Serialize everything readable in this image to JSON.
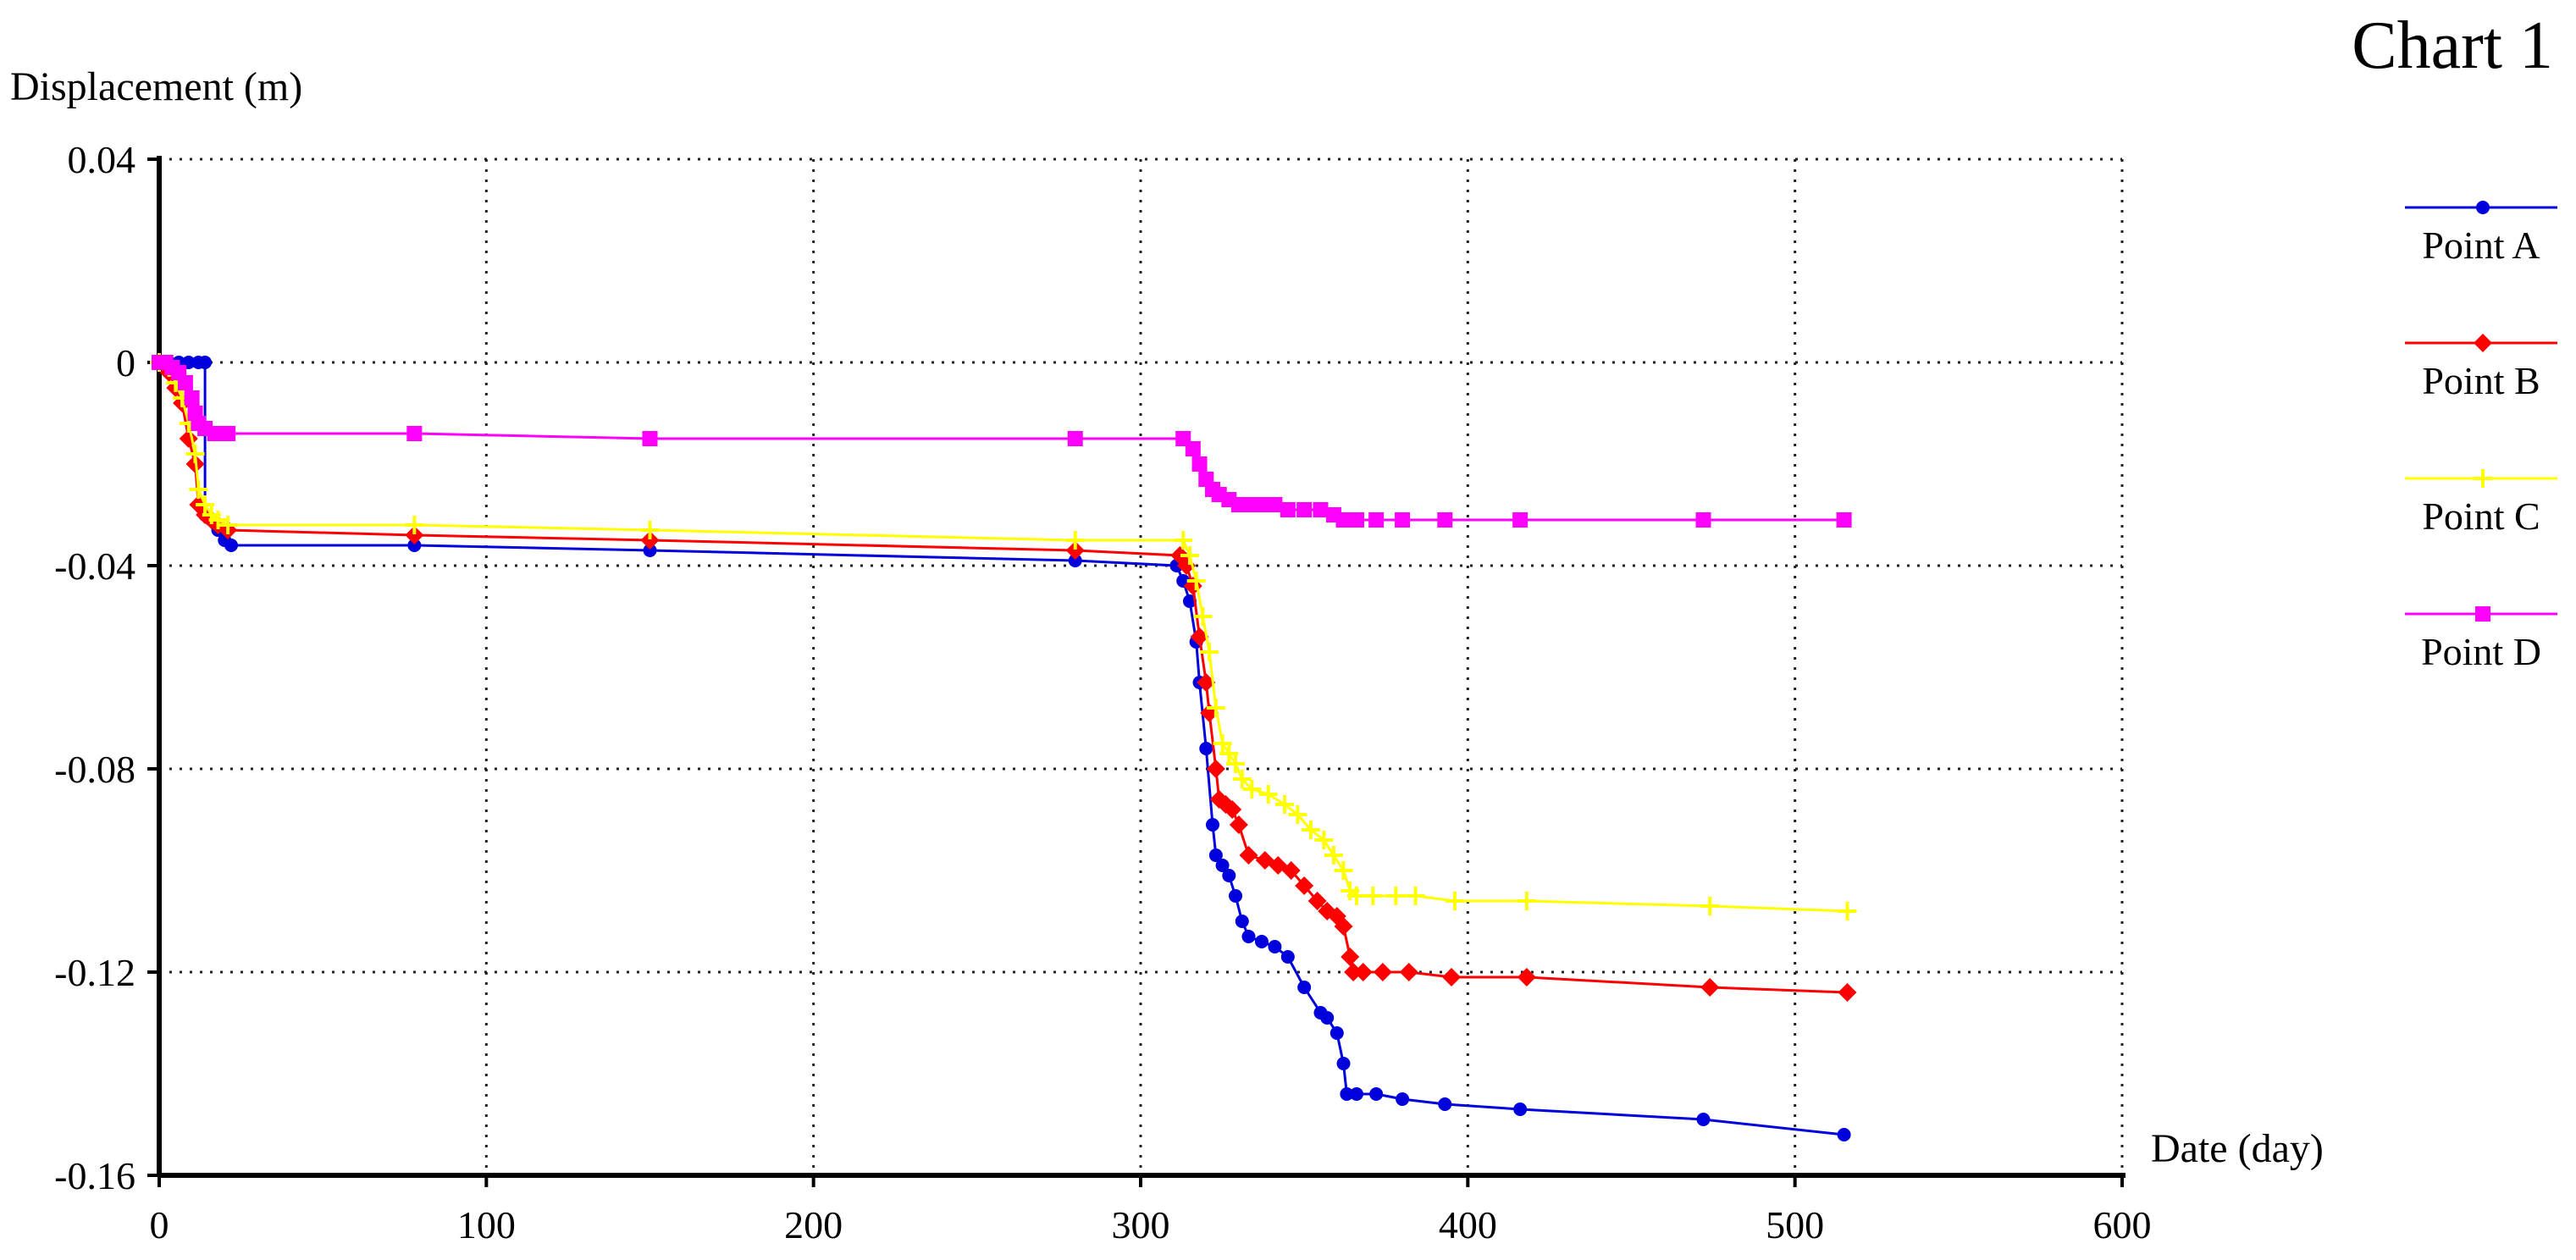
{
  "chart_title": "Chart 1",
  "chart_data": {
    "type": "line",
    "title": "Chart 1",
    "xlabel": "Date (day)",
    "ylabel": "Displacement (m)",
    "xlim": [
      0,
      600
    ],
    "ylim": [
      -0.16,
      0.04
    ],
    "x_ticks": [
      "0",
      "100",
      "200",
      "300",
      "400",
      "500",
      "600"
    ],
    "y_ticks": [
      "0.04",
      "0",
      "-0.04",
      "-0.08",
      "-0.12",
      "-0.16"
    ],
    "x_tick_values": [
      0,
      100,
      200,
      300,
      400,
      500,
      600
    ],
    "y_tick_values": [
      0.04,
      0,
      -0.04,
      -0.08,
      -0.12,
      -0.16
    ],
    "grid": true,
    "legend_position": "right",
    "series": [
      {
        "name": "Point A",
        "color": "#0000dd",
        "marker": "circle",
        "points": [
          [
            0,
            0
          ],
          [
            3,
            0
          ],
          [
            6,
            0
          ],
          [
            9,
            0
          ],
          [
            12,
            0
          ],
          [
            14,
            0
          ],
          [
            14,
            -0.03
          ],
          [
            16,
            -0.031
          ],
          [
            18,
            -0.033
          ],
          [
            20,
            -0.035
          ],
          [
            22,
            -0.036
          ],
          [
            78,
            -0.036
          ],
          [
            150,
            -0.037
          ],
          [
            280,
            -0.039
          ],
          [
            311,
            -0.04
          ],
          [
            313,
            -0.043
          ],
          [
            315,
            -0.047
          ],
          [
            317,
            -0.055
          ],
          [
            318,
            -0.063
          ],
          [
            320,
            -0.076
          ],
          [
            322,
            -0.091
          ],
          [
            323,
            -0.097
          ],
          [
            325,
            -0.099
          ],
          [
            327,
            -0.101
          ],
          [
            329,
            -0.105
          ],
          [
            331,
            -0.11
          ],
          [
            333,
            -0.113
          ],
          [
            337,
            -0.114
          ],
          [
            341,
            -0.115
          ],
          [
            345,
            -0.117
          ],
          [
            350,
            -0.123
          ],
          [
            355,
            -0.128
          ],
          [
            357,
            -0.129
          ],
          [
            360,
            -0.132
          ],
          [
            362,
            -0.138
          ],
          [
            363,
            -0.144
          ],
          [
            366,
            -0.144
          ],
          [
            372,
            -0.144
          ],
          [
            380,
            -0.145
          ],
          [
            393,
            -0.146
          ],
          [
            416,
            -0.147
          ],
          [
            472,
            -0.149
          ],
          [
            515,
            -0.152
          ]
        ]
      },
      {
        "name": "Point B",
        "color": "#ff0000",
        "marker": "diamond",
        "points": [
          [
            0,
            0
          ],
          [
            3,
            -0.002
          ],
          [
            5,
            -0.005
          ],
          [
            7,
            -0.008
          ],
          [
            9,
            -0.015
          ],
          [
            11,
            -0.02
          ],
          [
            12,
            -0.028
          ],
          [
            14,
            -0.03
          ],
          [
            16,
            -0.031
          ],
          [
            18,
            -0.032
          ],
          [
            21,
            -0.033
          ],
          [
            78,
            -0.034
          ],
          [
            150,
            -0.035
          ],
          [
            280,
            -0.037
          ],
          [
            312,
            -0.038
          ],
          [
            314,
            -0.04
          ],
          [
            316,
            -0.044
          ],
          [
            318,
            -0.054
          ],
          [
            320,
            -0.063
          ],
          [
            321,
            -0.069
          ],
          [
            323,
            -0.08
          ],
          [
            324,
            -0.086
          ],
          [
            326,
            -0.087
          ],
          [
            328,
            -0.088
          ],
          [
            330,
            -0.091
          ],
          [
            333,
            -0.097
          ],
          [
            338,
            -0.098
          ],
          [
            342,
            -0.099
          ],
          [
            346,
            -0.1
          ],
          [
            350,
            -0.103
          ],
          [
            354,
            -0.106
          ],
          [
            357,
            -0.108
          ],
          [
            360,
            -0.109
          ],
          [
            362,
            -0.111
          ],
          [
            364,
            -0.117
          ],
          [
            365,
            -0.12
          ],
          [
            368,
            -0.12
          ],
          [
            374,
            -0.12
          ],
          [
            382,
            -0.12
          ],
          [
            395,
            -0.121
          ],
          [
            418,
            -0.121
          ],
          [
            474,
            -0.123
          ],
          [
            516,
            -0.124
          ]
        ]
      },
      {
        "name": "Point C",
        "color": "#ffff00",
        "marker": "plus",
        "points": [
          [
            0,
            0
          ],
          [
            3,
            -0.001
          ],
          [
            5,
            -0.004
          ],
          [
            7,
            -0.007
          ],
          [
            9,
            -0.012
          ],
          [
            11,
            -0.018
          ],
          [
            12,
            -0.025
          ],
          [
            14,
            -0.028
          ],
          [
            16,
            -0.03
          ],
          [
            18,
            -0.031
          ],
          [
            21,
            -0.032
          ],
          [
            78,
            -0.032
          ],
          [
            150,
            -0.033
          ],
          [
            280,
            -0.035
          ],
          [
            313,
            -0.035
          ],
          [
            315,
            -0.038
          ],
          [
            317,
            -0.043
          ],
          [
            319,
            -0.05
          ],
          [
            321,
            -0.057
          ],
          [
            323,
            -0.068
          ],
          [
            325,
            -0.075
          ],
          [
            327,
            -0.077
          ],
          [
            329,
            -0.079
          ],
          [
            331,
            -0.082
          ],
          [
            334,
            -0.084
          ],
          [
            339,
            -0.085
          ],
          [
            344,
            -0.087
          ],
          [
            348,
            -0.089
          ],
          [
            352,
            -0.092
          ],
          [
            356,
            -0.094
          ],
          [
            359,
            -0.097
          ],
          [
            362,
            -0.1
          ],
          [
            364,
            -0.104
          ],
          [
            366,
            -0.105
          ],
          [
            371,
            -0.105
          ],
          [
            378,
            -0.105
          ],
          [
            384,
            -0.105
          ],
          [
            396,
            -0.106
          ],
          [
            418,
            -0.106
          ],
          [
            474,
            -0.107
          ],
          [
            516,
            -0.108
          ]
        ]
      },
      {
        "name": "Point D",
        "color": "#ff00ff",
        "marker": "square",
        "points": [
          [
            0,
            0
          ],
          [
            2,
            0
          ],
          [
            4,
            -0.001
          ],
          [
            6,
            -0.002
          ],
          [
            8,
            -0.004
          ],
          [
            10,
            -0.007
          ],
          [
            11,
            -0.01
          ],
          [
            12,
            -0.012
          ],
          [
            14,
            -0.013
          ],
          [
            17,
            -0.014
          ],
          [
            21,
            -0.014
          ],
          [
            78,
            -0.014
          ],
          [
            150,
            -0.015
          ],
          [
            280,
            -0.015
          ],
          [
            313,
            -0.015
          ],
          [
            316,
            -0.017
          ],
          [
            318,
            -0.02
          ],
          [
            320,
            -0.023
          ],
          [
            322,
            -0.025
          ],
          [
            324,
            -0.026
          ],
          [
            327,
            -0.027
          ],
          [
            330,
            -0.028
          ],
          [
            333,
            -0.028
          ],
          [
            337,
            -0.028
          ],
          [
            341,
            -0.028
          ],
          [
            345,
            -0.029
          ],
          [
            350,
            -0.029
          ],
          [
            355,
            -0.029
          ],
          [
            359,
            -0.03
          ],
          [
            362,
            -0.031
          ],
          [
            366,
            -0.031
          ],
          [
            372,
            -0.031
          ],
          [
            380,
            -0.031
          ],
          [
            393,
            -0.031
          ],
          [
            416,
            -0.031
          ],
          [
            472,
            -0.031
          ],
          [
            515,
            -0.031
          ]
        ]
      }
    ]
  }
}
